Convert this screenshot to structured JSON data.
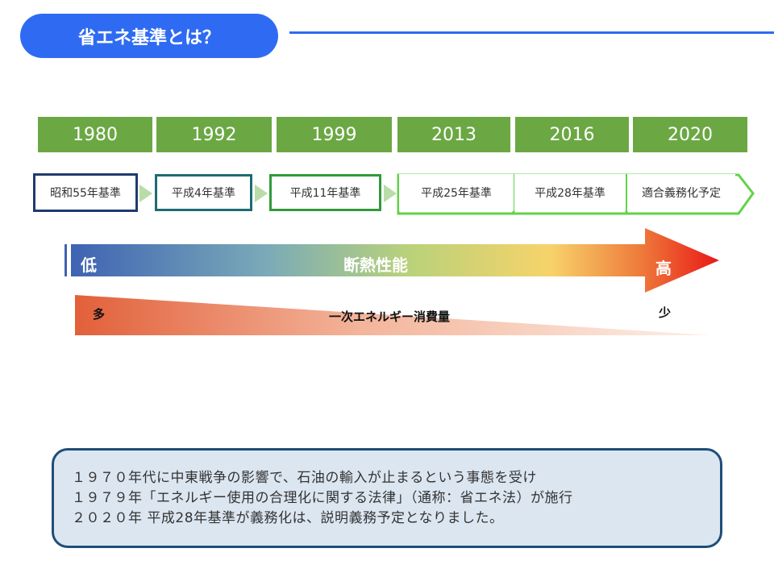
{
  "header": {
    "title": "省エネ基準とは？"
  },
  "timeline": {
    "years": [
      "1980",
      "1992",
      "1999",
      "2013",
      "2016",
      "2020"
    ],
    "standards": [
      "昭和55年基準",
      "平成4年基準",
      "平成11年基準",
      "平成25年基準",
      "平成28年基準",
      "適合義務化予定"
    ]
  },
  "insulation_arrow": {
    "low": "低",
    "label": "断熱性能",
    "high": "高"
  },
  "energy_wedge": {
    "many": "多",
    "label": "一次エネルギー消費量",
    "few": "少"
  },
  "note": {
    "lines": [
      "１９７０年代に中東戦争の影響で、石油の輸入が止まるという事態を受け",
      "１９７９年「エネルギー使用の合理化に関する法律」（通称：省エネ法）が施行",
      "２０２０年 平成28年基準が義務化は、説明義務予定となりました。"
    ]
  },
  "colors": {
    "accent_blue": "#2f6bf2",
    "year_green": "#6ba843",
    "note_bg": "#dce6f1",
    "note_border": "#1f4e79"
  }
}
